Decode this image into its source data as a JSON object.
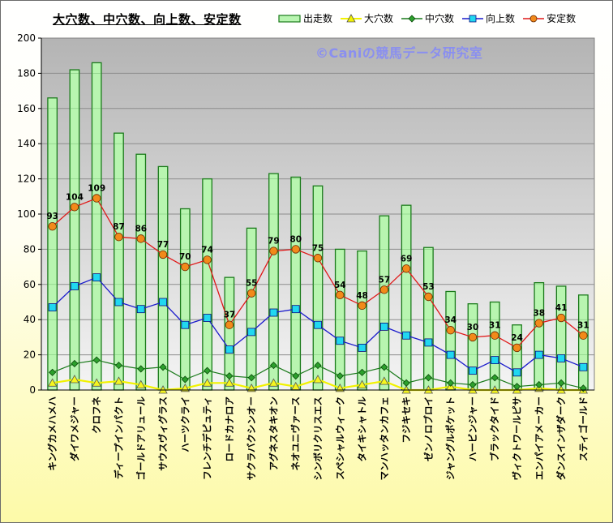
{
  "title": "大穴数、中穴数、向上数、安定数",
  "watermark": "©Caniの競馬データ研究室",
  "colors": {
    "bar_fill": "#b8f5b0",
    "bar_stroke": "#1a7a1a",
    "daiana": "#f2f200",
    "chuana": "#1a7a1a",
    "kojo": "#1a1acc",
    "antei": "#e01818",
    "kojo_marker": "#20d8f0",
    "antei_marker": "#f28a1a",
    "plot_bg_top": "#b4b4b4",
    "plot_bg_bottom": "#f4f4f4"
  },
  "legend": [
    {
      "label": "出走数",
      "icon": "bar-swatch"
    },
    {
      "label": "大穴数",
      "icon": "triangle-marker"
    },
    {
      "label": "中穴数",
      "icon": "diamond-marker"
    },
    {
      "label": "向上数",
      "icon": "square-marker"
    },
    {
      "label": "安定数",
      "icon": "circle-marker"
    }
  ],
  "chart_data": {
    "type": "bar",
    "title": "大穴数、中穴数、向上数、安定数",
    "legend_position": "top-right",
    "grid": true,
    "ylim": [
      0,
      200
    ],
    "yticks": [
      0,
      20,
      40,
      60,
      80,
      100,
      120,
      140,
      160,
      180,
      200
    ],
    "categories": [
      "キングカメハメハ",
      "ダイワメジャー",
      "クロフネ",
      "ディープインパクト",
      "ゴールドアリュール",
      "サウスヴィグラス",
      "ハーツクライ",
      "フレンチデピュティ",
      "ロードカナロア",
      "サクラバクシンオー",
      "アグネスタキオン",
      "ネオユニヴァース",
      "シンボリクリスエス",
      "スペシャルウィーク",
      "タイキシャトル",
      "マンハッタンカフェ",
      "フジキセキ",
      "ゼンノロブロイ",
      "ジャングルポケット",
      "ハービンジャー",
      "ブラックタイド",
      "ヴィクトワールピサ",
      "エンパイアメーカー",
      "ダンスインザダーク",
      "スティゴールド"
    ],
    "series": [
      {
        "name": "出走数",
        "kind": "bar",
        "values": [
          166,
          182,
          186,
          146,
          134,
          127,
          103,
          120,
          64,
          92,
          123,
          121,
          116,
          80,
          79,
          99,
          105,
          81,
          56,
          49,
          50,
          37,
          61,
          59,
          54
        ]
      },
      {
        "name": "大穴数",
        "kind": "line",
        "marker": "triangle",
        "values": [
          4,
          6,
          4,
          5,
          3,
          0,
          1,
          4,
          4,
          1,
          4,
          2,
          6,
          1,
          3,
          5,
          0,
          0,
          2,
          0,
          0,
          0,
          1,
          0,
          0
        ]
      },
      {
        "name": "中穴数",
        "kind": "line",
        "marker": "diamond",
        "values": [
          10,
          15,
          17,
          14,
          12,
          13,
          6,
          11,
          8,
          7,
          14,
          8,
          14,
          8,
          10,
          13,
          4,
          7,
          4,
          3,
          7,
          2,
          3,
          4,
          1
        ]
      },
      {
        "name": "向上数",
        "kind": "line",
        "marker": "square",
        "values": [
          47,
          59,
          64,
          50,
          46,
          50,
          37,
          41,
          23,
          33,
          44,
          46,
          37,
          28,
          24,
          36,
          31,
          27,
          20,
          11,
          17,
          10,
          20,
          18,
          13
        ]
      },
      {
        "name": "安定数",
        "kind": "line",
        "marker": "circle",
        "labeled": true,
        "values": [
          93,
          104,
          109,
          87,
          86,
          77,
          70,
          74,
          37,
          55,
          79,
          80,
          75,
          54,
          48,
          57,
          69,
          53,
          34,
          30,
          31,
          24,
          38,
          41,
          31
        ]
      }
    ]
  }
}
